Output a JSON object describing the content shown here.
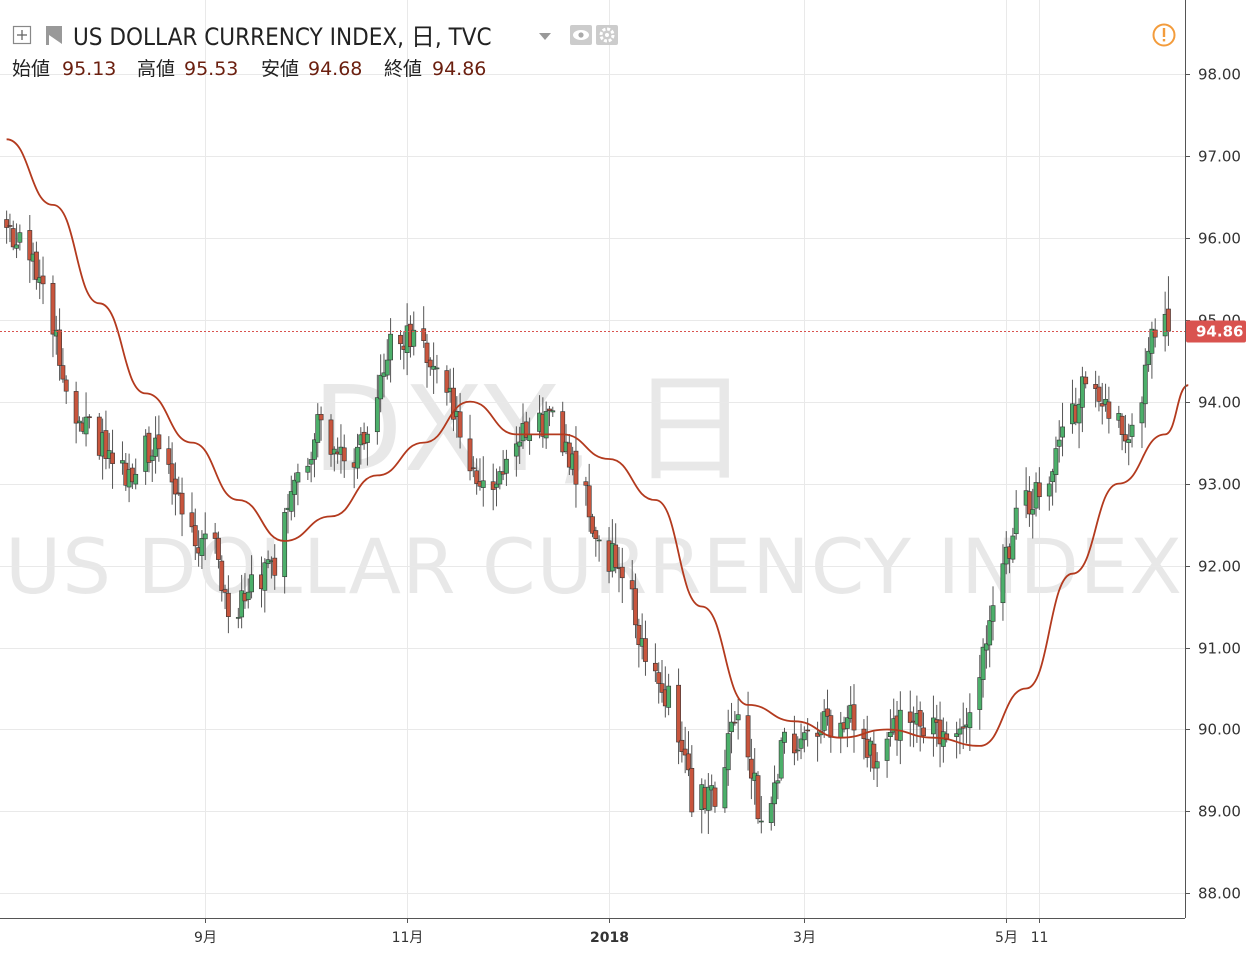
{
  "header": {
    "title": "US DOLLAR CURRENCY INDEX, 日, TVC",
    "ohlc": [
      {
        "label": "始値",
        "value": "95.13"
      },
      {
        "label": "高値",
        "value": "95.53"
      },
      {
        "label": "安値",
        "value": "94.68"
      },
      {
        "label": "終値",
        "value": "94.86"
      }
    ]
  },
  "watermark": {
    "symbol": "DXY, 日",
    "name": "US DOLLAR CURRENCY INDEX"
  },
  "icons": {
    "crosshair": "plus-square-icon",
    "flag": "flag-icon",
    "dropdown": "caret-down-icon",
    "eye": "eye-icon",
    "settings": "gear-icon",
    "alert": "exclamation-circle-icon"
  },
  "colors": {
    "up": "#4caf6a",
    "down": "#c8553d",
    "ma": "#b33a1e",
    "alert": "#f39c3c",
    "last_price": "#d9534f"
  },
  "last_price": "94.86",
  "chart_data": {
    "type": "candlestick",
    "title": "US DOLLAR CURRENCY INDEX, 日, TVC",
    "y_axis": {
      "ylim": [
        87.7,
        98.9
      ],
      "ticks": [
        "88.00",
        "89.00",
        "90.00",
        "91.00",
        "92.00",
        "93.00",
        "94.00",
        "95.00",
        "96.00",
        "97.00",
        "98.00"
      ]
    },
    "x_axis": {
      "ticks": [
        {
          "label": "9月",
          "date": "2017-09-01"
        },
        {
          "label": "11月",
          "date": "2017-11-01"
        },
        {
          "label": "2018",
          "date": "2018-01-01",
          "bold": true
        },
        {
          "label": "3月",
          "date": "2018-03-01"
        },
        {
          "label": "5月",
          "date": "2018-05-01"
        },
        {
          "label": "11",
          "date": "2018-05-11"
        }
      ]
    },
    "grid": true,
    "series": [
      {
        "kind": "price",
        "anchors": [
          [
            "2017-07-03",
            96.1
          ],
          [
            "2017-07-10",
            95.8
          ],
          [
            "2017-07-17",
            94.9
          ],
          [
            "2017-07-24",
            93.9
          ],
          [
            "2017-07-31",
            93.5
          ],
          [
            "2017-08-07",
            93.1
          ],
          [
            "2017-08-14",
            93.4
          ],
          [
            "2017-08-21",
            93.3
          ],
          [
            "2017-08-28",
            92.4
          ],
          [
            "2017-09-04",
            92.2
          ],
          [
            "2017-09-08",
            91.3
          ],
          [
            "2017-09-15",
            91.8
          ],
          [
            "2017-09-22",
            92.0
          ],
          [
            "2017-09-29",
            93.1
          ],
          [
            "2017-10-06",
            93.8
          ],
          [
            "2017-10-13",
            93.2
          ],
          [
            "2017-10-20",
            93.6
          ],
          [
            "2017-10-27",
            94.7
          ],
          [
            "2017-11-03",
            94.9
          ],
          [
            "2017-11-10",
            94.4
          ],
          [
            "2017-11-17",
            93.7
          ],
          [
            "2017-11-24",
            92.9
          ],
          [
            "2017-12-01",
            93.2
          ],
          [
            "2017-12-08",
            93.8
          ],
          [
            "2017-12-15",
            93.7
          ],
          [
            "2017-12-22",
            93.2
          ],
          [
            "2017-12-29",
            92.2
          ],
          [
            "2018-01-05",
            92.0
          ],
          [
            "2018-01-12",
            90.9
          ],
          [
            "2018-01-19",
            90.4
          ],
          [
            "2018-01-26",
            89.2
          ],
          [
            "2018-02-02",
            89.1
          ],
          [
            "2018-02-09",
            90.3
          ],
          [
            "2018-02-16",
            88.9
          ],
          [
            "2018-02-23",
            89.8
          ],
          [
            "2018-03-02",
            90.0
          ],
          [
            "2018-03-09",
            90.1
          ],
          [
            "2018-03-16",
            90.2
          ],
          [
            "2018-03-23",
            89.5
          ],
          [
            "2018-03-30",
            90.1
          ],
          [
            "2018-04-06",
            90.1
          ],
          [
            "2018-04-13",
            89.8
          ],
          [
            "2018-04-20",
            90.0
          ],
          [
            "2018-04-27",
            91.5
          ],
          [
            "2018-05-04",
            92.6
          ],
          [
            "2018-05-11",
            92.9
          ],
          [
            "2018-05-18",
            93.6
          ],
          [
            "2018-05-25",
            94.2
          ],
          [
            "2018-06-01",
            94.0
          ],
          [
            "2018-06-08",
            93.6
          ],
          [
            "2018-06-15",
            94.9
          ],
          [
            "2018-06-19",
            94.86
          ]
        ],
        "last": {
          "open": 95.13,
          "high": 95.53,
          "low": 94.68,
          "close": 94.86
        }
      },
      {
        "kind": "moving_average",
        "points": [
          [
            "2017-07-03",
            97.2
          ],
          [
            "2017-07-17",
            96.4
          ],
          [
            "2017-07-31",
            95.2
          ],
          [
            "2017-08-14",
            94.1
          ],
          [
            "2017-08-28",
            93.5
          ],
          [
            "2017-09-11",
            92.8
          ],
          [
            "2017-09-25",
            92.3
          ],
          [
            "2017-10-09",
            92.6
          ],
          [
            "2017-10-23",
            93.1
          ],
          [
            "2017-11-06",
            93.5
          ],
          [
            "2017-11-20",
            94.0
          ],
          [
            "2017-12-04",
            93.6
          ],
          [
            "2017-12-18",
            93.6
          ],
          [
            "2018-01-01",
            93.3
          ],
          [
            "2018-01-15",
            92.8
          ],
          [
            "2018-01-29",
            91.5
          ],
          [
            "2018-02-12",
            90.3
          ],
          [
            "2018-02-26",
            90.1
          ],
          [
            "2018-03-12",
            89.9
          ],
          [
            "2018-03-26",
            90.0
          ],
          [
            "2018-04-09",
            89.9
          ],
          [
            "2018-04-23",
            89.8
          ],
          [
            "2018-05-07",
            90.5
          ],
          [
            "2018-05-21",
            91.9
          ],
          [
            "2018-06-04",
            93.0
          ],
          [
            "2018-06-18",
            93.6
          ],
          [
            "2018-06-25",
            94.2
          ]
        ]
      }
    ]
  }
}
